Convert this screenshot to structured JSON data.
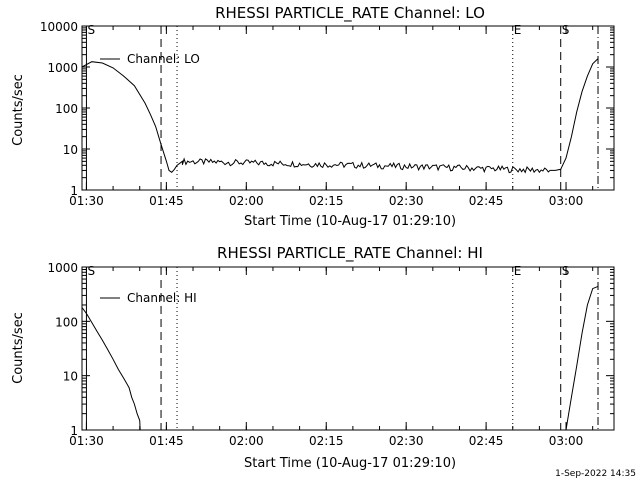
{
  "footer": {
    "date_stamp": "1-Sep-2022 14:35"
  },
  "chart_data": [
    {
      "type": "line",
      "title": "RHESSI PARTICLE_RATE Channel: LO",
      "xlabel": "Start Time (10-Aug-17 01:29:10)",
      "ylabel": "Counts/sec",
      "yscale": "log",
      "xlim": [
        "01:29:10",
        "03:09:00"
      ],
      "ylim": [
        1,
        10000
      ],
      "xticks": [
        "01:30",
        "01:45",
        "02:00",
        "02:15",
        "02:30",
        "02:45",
        "03:00"
      ],
      "yticks": [
        "1",
        "10",
        "100",
        "1000",
        "10000"
      ],
      "legend": "Channel: LO",
      "markers": [
        {
          "time": "01:30",
          "style": "solid",
          "label": "S"
        },
        {
          "time": "01:44",
          "style": "dashed",
          "label": ""
        },
        {
          "time": "01:47",
          "style": "dotted",
          "label": ""
        },
        {
          "time": "02:50",
          "style": "dotted",
          "label": "E"
        },
        {
          "time": "02:59",
          "style": "dashed",
          "label": "S"
        },
        {
          "time": "03:06",
          "style": "dashdot",
          "label": ""
        }
      ],
      "series": [
        {
          "name": "Channel: LO",
          "x": [
            "01:29:10",
            "01:31:00",
            "01:33:00",
            "01:35:00",
            "01:37:00",
            "01:39:00",
            "01:41:00",
            "01:42:00",
            "01:43:00",
            "01:44:00",
            "01:45:00",
            "01:45:30",
            "01:46:00",
            "01:46:30",
            "01:47:00",
            "01:48:00",
            "02:57:00",
            "02:58:00",
            "02:59:00",
            "03:00:00",
            "03:01:00",
            "03:02:00",
            "03:03:00",
            "03:04:00",
            "03:05:00",
            "03:06:00"
          ],
          "y": [
            1000,
            1350,
            1250,
            950,
            600,
            350,
            130,
            70,
            35,
            13,
            5,
            3,
            2.7,
            3.2,
            4,
            5,
            3,
            3,
            3.2,
            6,
            20,
            80,
            250,
            600,
            1200,
            1600
          ]
        }
      ]
    },
    {
      "type": "line",
      "title": "RHESSI PARTICLE_RATE Channel: HI",
      "xlabel": "Start Time (10-Aug-17 01:29:10)",
      "ylabel": "Counts/sec",
      "yscale": "log",
      "xlim": [
        "01:29:10",
        "03:09:00"
      ],
      "ylim": [
        1,
        1000
      ],
      "xticks": [
        "01:30",
        "01:45",
        "02:00",
        "02:15",
        "02:30",
        "02:45",
        "03:00"
      ],
      "yticks": [
        "1",
        "10",
        "100",
        "1000"
      ],
      "legend": "Channel: HI",
      "markers": [
        {
          "time": "01:30",
          "style": "solid",
          "label": "S"
        },
        {
          "time": "01:44",
          "style": "dashed",
          "label": ""
        },
        {
          "time": "01:47",
          "style": "dotted",
          "label": ""
        },
        {
          "time": "02:50",
          "style": "dotted",
          "label": "E"
        },
        {
          "time": "02:59",
          "style": "dashed",
          "label": "S"
        },
        {
          "time": "03:06",
          "style": "dashdot",
          "label": ""
        }
      ],
      "series": [
        {
          "name": "Channel: HI",
          "x": [
            "01:29:10",
            "01:30:00",
            "01:31:00",
            "01:32:00",
            "01:33:00",
            "01:34:00",
            "01:35:00",
            "01:36:00",
            "01:37:00",
            "01:38:00",
            "01:38:30",
            "01:39:00",
            "01:39:30",
            "01:40:00",
            "01:40:05",
            "03:00:00",
            "03:00:30",
            "03:01:00",
            "03:02:00",
            "03:03:00",
            "03:04:00",
            "03:05:00",
            "03:06:00"
          ],
          "y": [
            180,
            140,
            95,
            65,
            45,
            30,
            20,
            13,
            9,
            6,
            4,
            3,
            2,
            1.5,
            1,
            1,
            2,
            4,
            15,
            60,
            200,
            400,
            440
          ]
        }
      ]
    }
  ]
}
